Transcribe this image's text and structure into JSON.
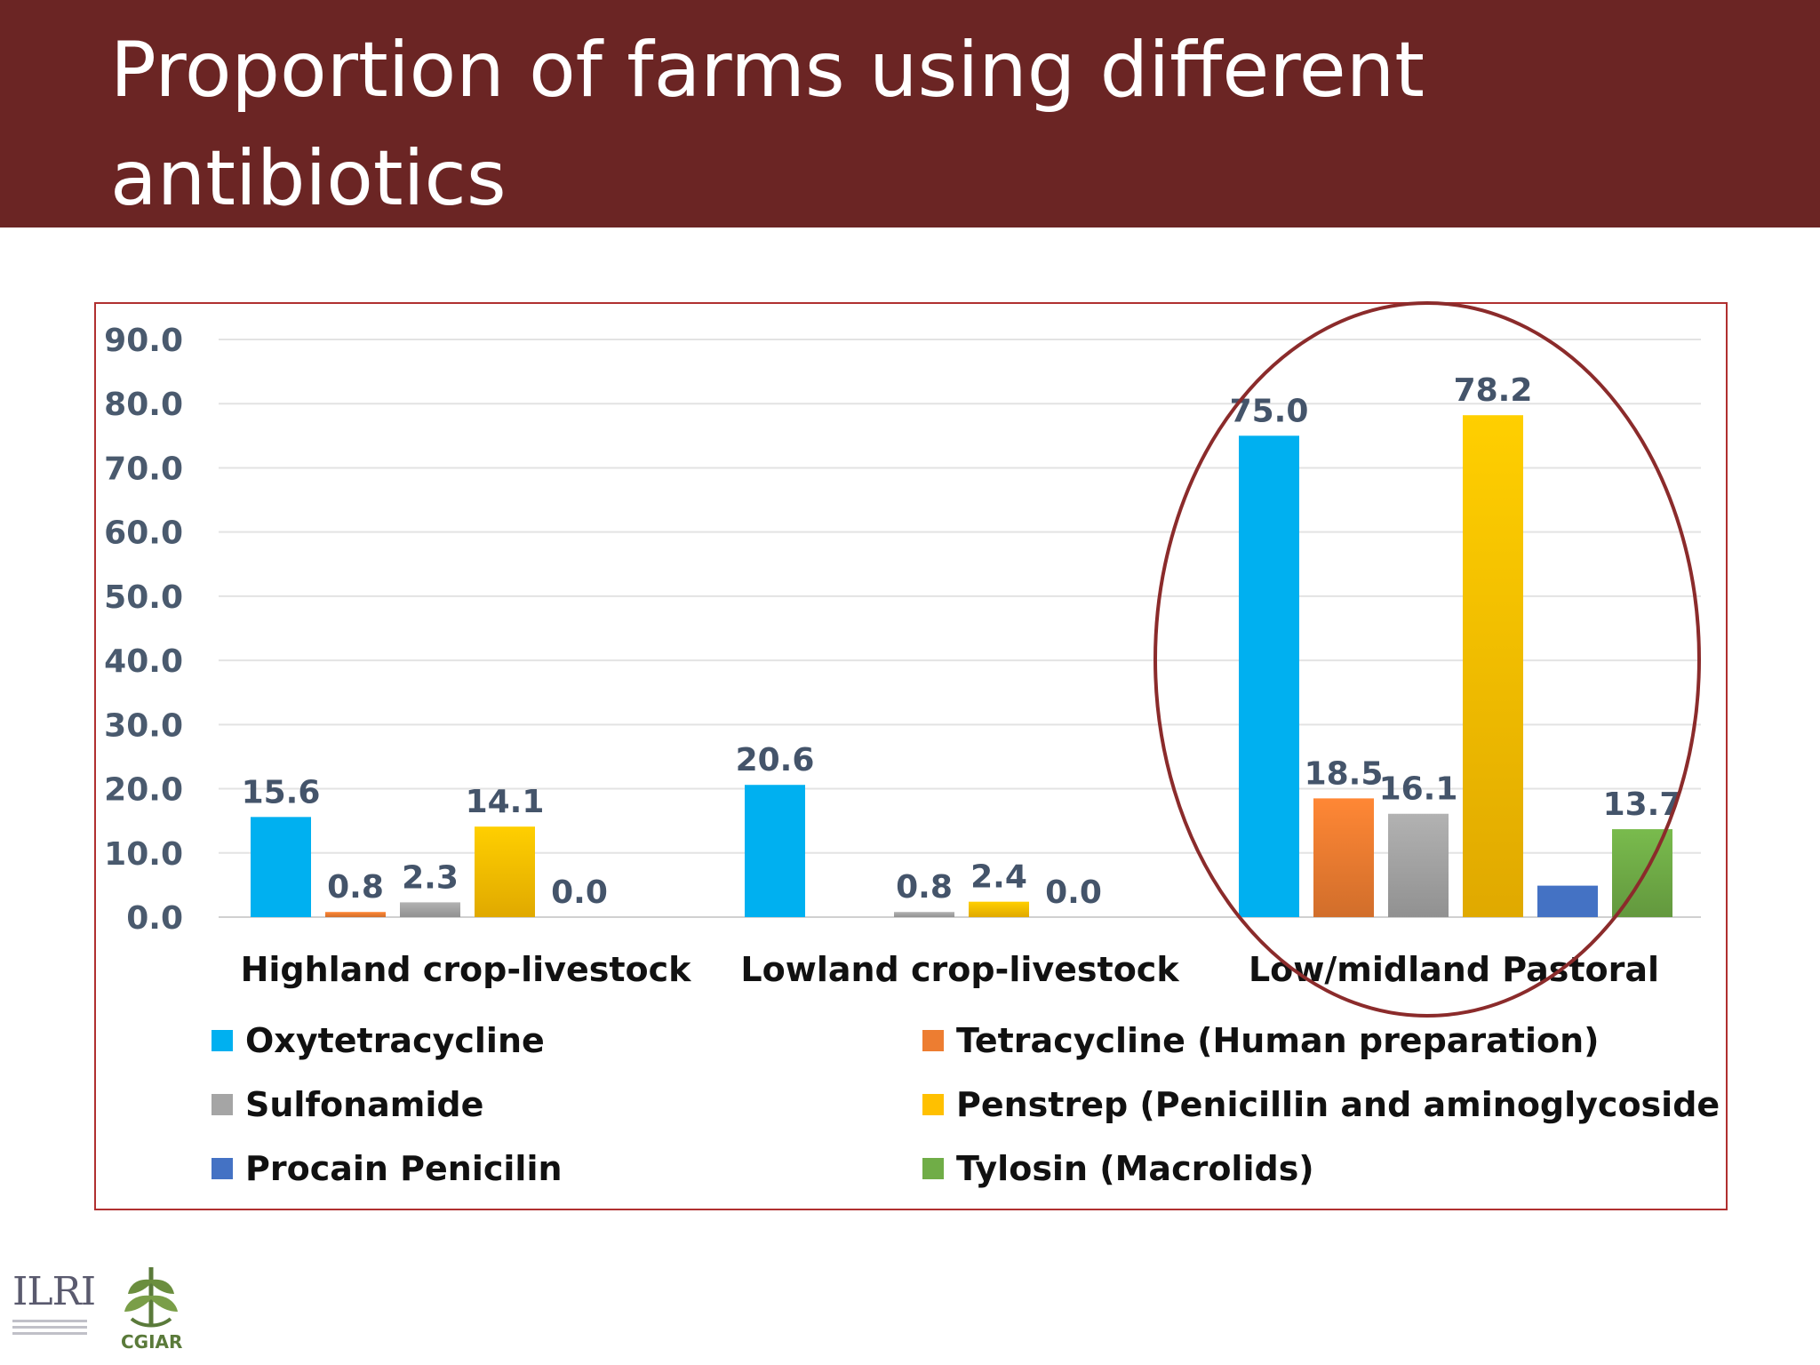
{
  "slide": {
    "title": "Proportion of farms using different antibiotics"
  },
  "logos": {
    "ilri_text": "ILRI",
    "cgiar_text": "CGIAR"
  },
  "colors": {
    "header_bg": "#6b2524",
    "frame": "#b03030",
    "highlight_ellipse": "#8b2b2b"
  },
  "chart_data": {
    "type": "bar",
    "categories": [
      "Highland crop-livestock",
      "Lowland crop-livestock",
      "Low/midland Pastoral"
    ],
    "ylim": [
      0,
      90
    ],
    "yticks": [
      "0.0",
      "10.0",
      "20.0",
      "30.0",
      "40.0",
      "50.0",
      "60.0",
      "70.0",
      "80.0",
      "90.0"
    ],
    "grid": true,
    "legend_position": "bottom",
    "series": [
      {
        "name": "Oxytetracycline",
        "color": "#00b0f0",
        "values": [
          15.6,
          20.6,
          75.0
        ],
        "labels": [
          "15.6",
          "20.6",
          "75.0"
        ]
      },
      {
        "name": "Tetracycline (Human preparation)",
        "color": "#ed7d31",
        "values": [
          0.8,
          0.0,
          18.5
        ],
        "labels": [
          "0.8",
          "",
          "18.5"
        ]
      },
      {
        "name": "Sulfonamide",
        "color": "#a5a5a5",
        "values": [
          2.3,
          0.8,
          16.1
        ],
        "labels": [
          "2.3",
          "0.8",
          "16.1"
        ]
      },
      {
        "name": "Penstrep (Penicillin and aminoglycoside",
        "color": "#ffc000",
        "values": [
          14.1,
          2.4,
          78.2
        ],
        "labels": [
          "14.1",
          "2.4",
          "78.2"
        ]
      },
      {
        "name": "Procain Penicilin",
        "color": "#4472c4",
        "values": [
          0.0,
          0.0,
          4.9
        ],
        "labels": [
          "0.0",
          "0.0",
          ""
        ]
      },
      {
        "name": "Tylosin (Macrolids)",
        "color": "#70ad47",
        "values": [
          0.0,
          0.0,
          13.7
        ],
        "labels": [
          "",
          "",
          "13.7"
        ]
      }
    ]
  }
}
